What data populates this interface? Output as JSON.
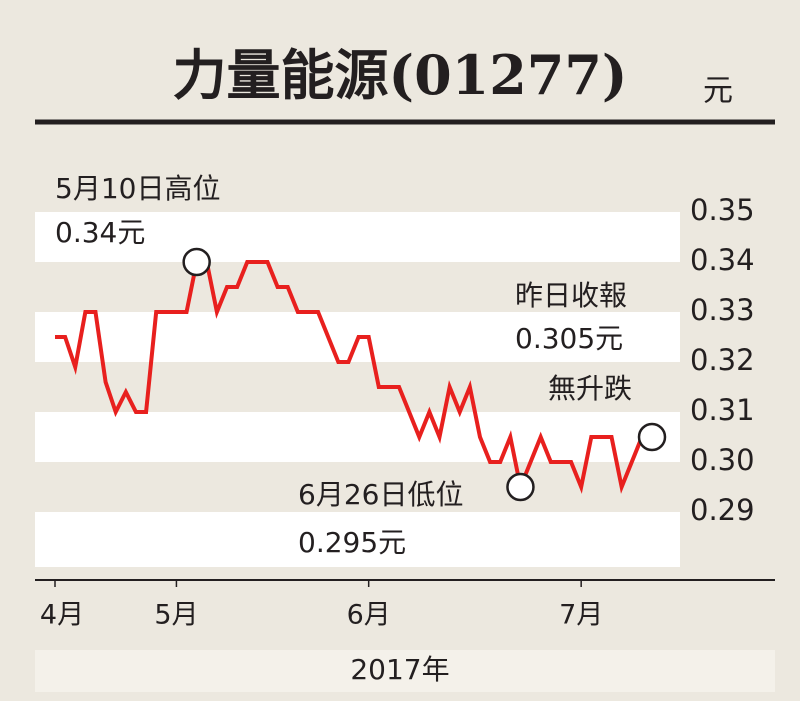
{
  "chart_data": {
    "type": "line",
    "title": "力量能源(01277)",
    "y_label": "元",
    "x_label": "2017年",
    "categories": [
      "4月",
      null,
      null,
      null,
      null,
      null,
      null,
      null,
      null,
      null,
      null,
      null,
      "5月",
      null,
      null,
      null,
      null,
      null,
      null,
      null,
      null,
      null,
      null,
      null,
      null,
      null,
      null,
      null,
      null,
      null,
      null,
      "6月",
      null,
      null,
      null,
      null,
      null,
      null,
      null,
      null,
      null,
      null,
      null,
      null,
      null,
      null,
      null,
      null,
      null,
      null,
      null,
      null,
      "7月",
      null,
      null,
      null,
      null,
      null,
      null,
      null
    ],
    "series": [
      {
        "name": "力量能源",
        "color": "#e8201e",
        "values": [
          0.325,
          0.325,
          0.319,
          0.33,
          0.33,
          0.316,
          0.31,
          0.314,
          0.31,
          0.31,
          0.33,
          0.33,
          0.33,
          0.33,
          0.34,
          0.34,
          0.33,
          0.335,
          0.335,
          0.34,
          0.34,
          0.34,
          0.335,
          0.335,
          0.33,
          0.33,
          0.33,
          0.325,
          0.32,
          0.32,
          0.325,
          0.325,
          0.315,
          0.315,
          0.315,
          0.31,
          0.305,
          0.31,
          0.305,
          0.315,
          0.31,
          0.315,
          0.305,
          0.3,
          0.3,
          0.305,
          0.295,
          0.3,
          0.305,
          0.3,
          0.3,
          0.3,
          0.295,
          0.305,
          0.305,
          0.305,
          0.295,
          0.3,
          0.305,
          0.305
        ]
      }
    ],
    "ylim": [
      0.279,
      0.35
    ],
    "yticks": [
      0.35,
      0.34,
      0.33,
      0.32,
      0.31,
      {
        "value": 0.3,
        "label": "0.30"
      },
      0.29
    ],
    "annotations": [
      {
        "lines": [
          "5月10日高位",
          "0.34元"
        ]
      },
      {
        "lines": [
          "昨日收報",
          "0.305元",
          "無升跌"
        ]
      },
      {
        "lines": [
          "6月26日低位",
          "0.295元"
        ]
      }
    ]
  }
}
